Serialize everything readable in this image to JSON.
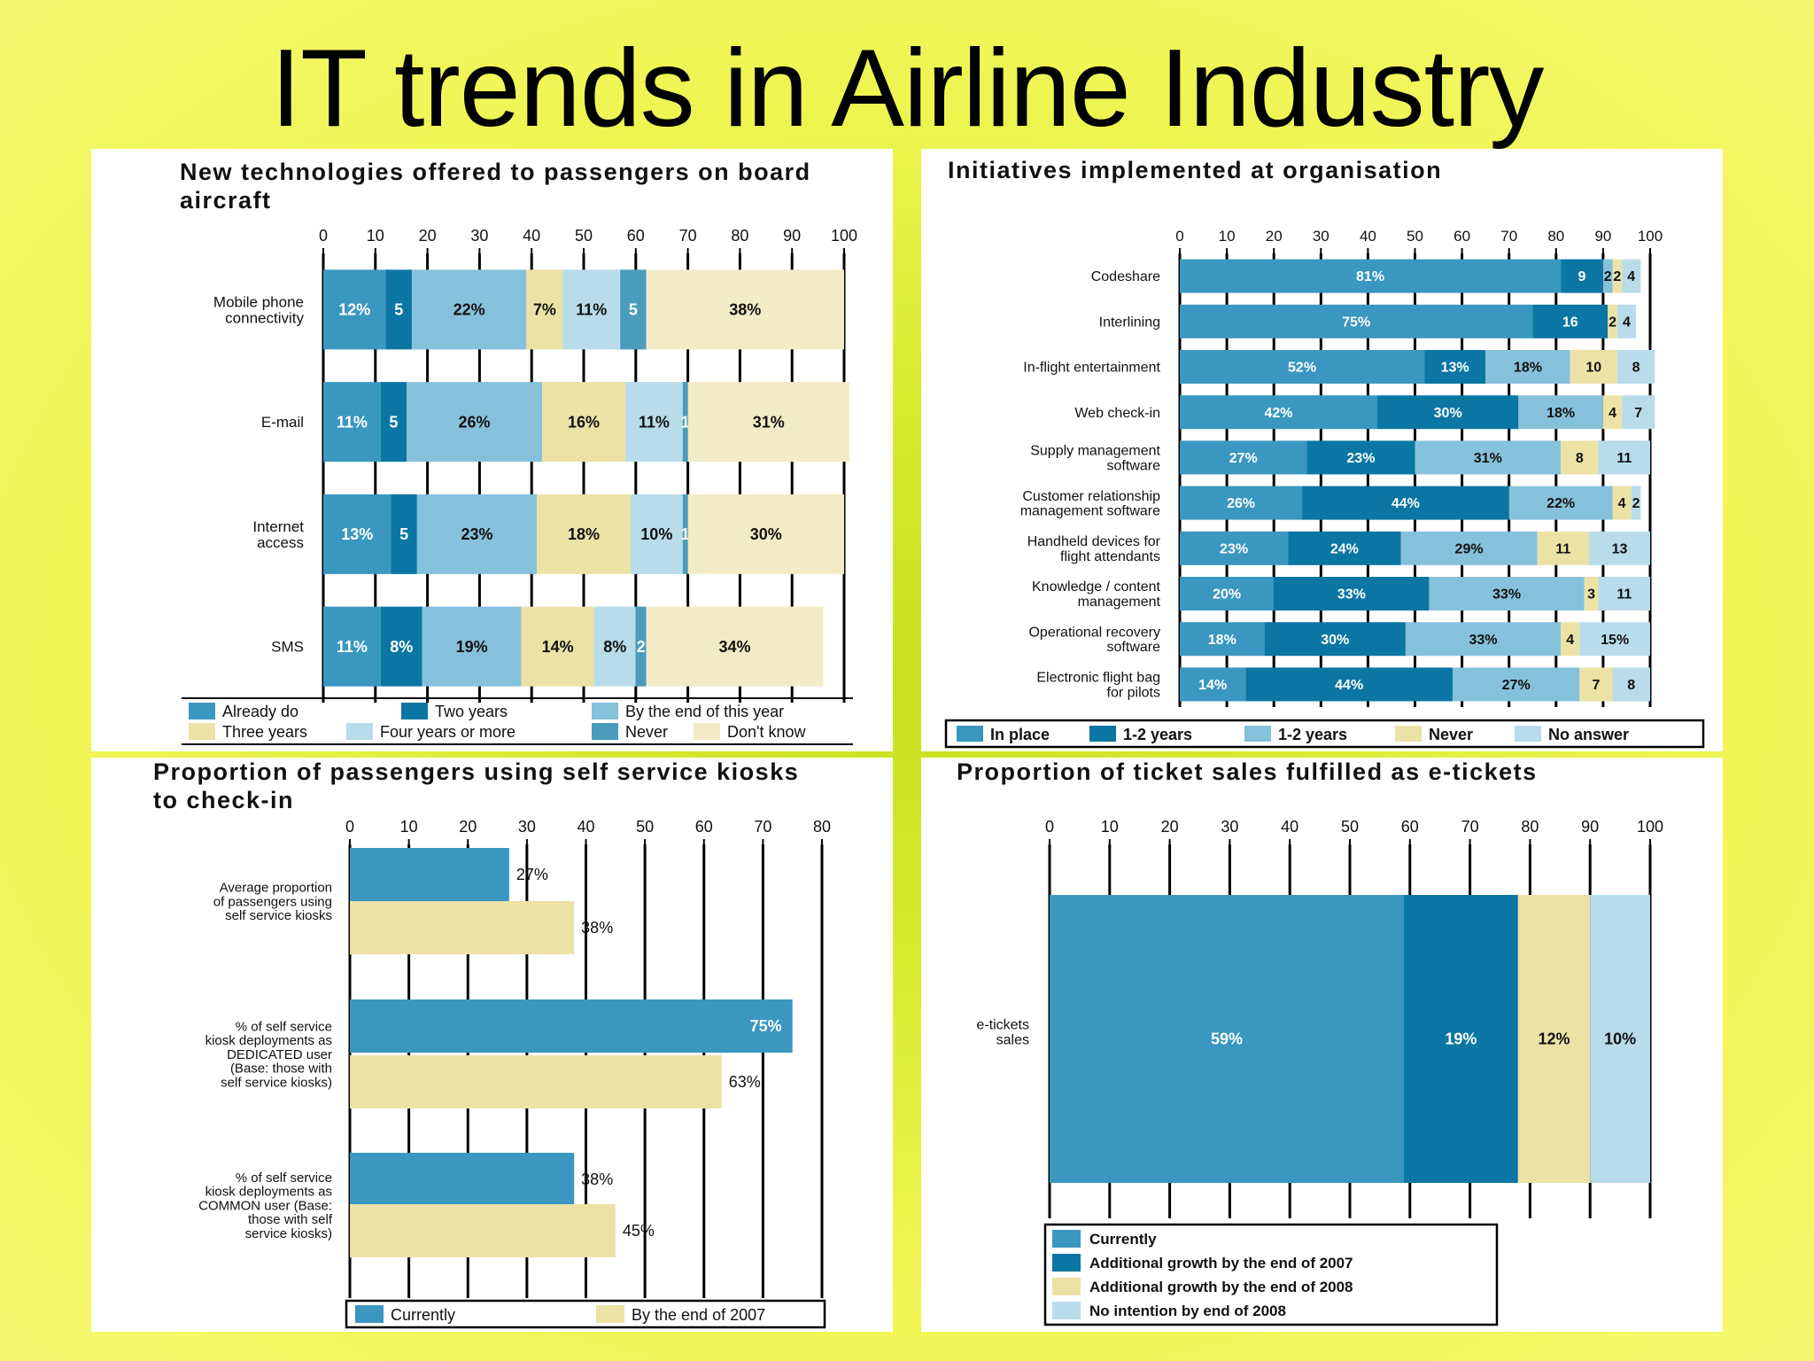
{
  "title": "IT trends in Airline Industry",
  "colors": {
    "c1": "#3a97c0",
    "c2": "#0b76a3",
    "c3": "#86c1dc",
    "c4": "#ece2a6",
    "c5": "#b8dcea",
    "c6": "#4a9cbd",
    "c7": "#f2ebc6",
    "frame": "#000000"
  },
  "chart_data": [
    {
      "type": "bar",
      "orientation": "horizontal-stacked",
      "title": "New technologies offered to passengers on board aircraft",
      "xlim": [
        0,
        100
      ],
      "xticks": [
        "0",
        "10",
        "20",
        "30",
        "40",
        "50",
        "60",
        "70",
        "80",
        "90",
        "100"
      ],
      "categories": [
        "Mobile phone connectivity",
        "E-mail",
        "Internet access",
        "SMS"
      ],
      "series": [
        {
          "name": "Already do",
          "color": "#3a97c0",
          "values": [
            12,
            11,
            13,
            11
          ]
        },
        {
          "name": "Two years",
          "color": "#0b76a3",
          "values": [
            5,
            5,
            5,
            8
          ]
        },
        {
          "name": "By the end of this year",
          "color": "#86c1dc",
          "values": [
            22,
            26,
            23,
            19
          ]
        },
        {
          "name": "Three years",
          "color": "#ece2a6",
          "values": [
            7,
            16,
            18,
            14
          ]
        },
        {
          "name": "Four years or more",
          "color": "#b8dcea",
          "values": [
            11,
            11,
            10,
            8
          ]
        },
        {
          "name": "Never",
          "color": "#4a9cbd",
          "values": [
            5,
            1,
            1,
            2
          ]
        },
        {
          "name": "Don't know",
          "color": "#f2ebc6",
          "values": [
            38,
            31,
            30,
            34
          ]
        }
      ],
      "labels": [
        [
          "12%",
          "5",
          "22%",
          "7%",
          "11%",
          "5",
          "38%"
        ],
        [
          "11%",
          "5",
          "26%",
          "16%",
          "11%",
          "1",
          "31%"
        ],
        [
          "13%",
          "5",
          "23%",
          "18%",
          "10%",
          "1",
          "30%"
        ],
        [
          "11%",
          "8%",
          "19%",
          "14%",
          "8%",
          "2",
          "34%"
        ]
      ],
      "legend": "bottom"
    },
    {
      "type": "bar",
      "orientation": "horizontal-stacked",
      "title": "Initiatives implemented at organisation",
      "xlim": [
        0,
        100
      ],
      "xticks": [
        "0",
        "10",
        "20",
        "30",
        "40",
        "50",
        "60",
        "70",
        "80",
        "90",
        "100"
      ],
      "categories": [
        "Codeshare",
        "Interlining",
        "In-flight entertainment",
        "Web check-in",
        "Supply management software",
        "Customer relationship management software",
        "Handheld devices for flight attendants",
        "Knowledge / content management",
        "Operational recovery software",
        "Electronic flight bag for pilots"
      ],
      "series": [
        {
          "name": "In place",
          "color": "#3a97c0",
          "values": [
            81,
            75,
            52,
            42,
            27,
            26,
            23,
            20,
            18,
            14
          ]
        },
        {
          "name": "1-2 years",
          "color": "#0b76a3",
          "values": [
            9,
            16,
            13,
            30,
            23,
            44,
            24,
            33,
            30,
            44
          ]
        },
        {
          "name": "1-2 years",
          "color": "#86c1dc",
          "values": [
            2,
            0,
            18,
            18,
            31,
            22,
            29,
            33,
            33,
            27
          ]
        },
        {
          "name": "Never",
          "color": "#ece2a6",
          "values": [
            2,
            2,
            10,
            4,
            8,
            4,
            11,
            3,
            4,
            7
          ]
        },
        {
          "name": "No answer",
          "color": "#b8dcea",
          "values": [
            4,
            4,
            8,
            7,
            11,
            2,
            13,
            11,
            15,
            8
          ]
        }
      ],
      "labels": [
        [
          "81%",
          "9",
          "2",
          "2",
          "4"
        ],
        [
          "75%",
          "16",
          "",
          "2",
          "4"
        ],
        [
          "52%",
          "13%",
          "18%",
          "10",
          "8"
        ],
        [
          "42%",
          "30%",
          "18%",
          "4",
          "7"
        ],
        [
          "27%",
          "23%",
          "31%",
          "8",
          "11"
        ],
        [
          "26%",
          "44%",
          "22%",
          "4",
          "2"
        ],
        [
          "23%",
          "24%",
          "29%",
          "11",
          "13"
        ],
        [
          "20%",
          "33%",
          "33%",
          "3",
          "11"
        ],
        [
          "18%",
          "30%",
          "33%",
          "4",
          "15%"
        ],
        [
          "14%",
          "44%",
          "27%",
          "7",
          "8"
        ]
      ],
      "legend": "bottom"
    },
    {
      "type": "bar",
      "orientation": "horizontal-grouped",
      "title": "Proportion of passengers using self service kiosks to check-in",
      "xlim": [
        0,
        80
      ],
      "xticks": [
        "0",
        "10",
        "20",
        "30",
        "40",
        "50",
        "60",
        "70",
        "80"
      ],
      "categories": [
        "Average proportion of passengers using self service kiosks",
        "% of self service kiosk deployments as DEDICATED user (Base: those with self service kiosks)",
        "% of self service kiosk deployments as COMMON user (Base: those with self service kiosks)"
      ],
      "series": [
        {
          "name": "Currently",
          "color": "#3a97c0",
          "values": [
            27,
            75,
            38
          ]
        },
        {
          "name": "By the end of 2007",
          "color": "#ece2a6",
          "values": [
            38,
            63,
            45
          ]
        }
      ],
      "labels": [
        [
          "27%",
          "75%",
          "38%"
        ],
        [
          "38%",
          "63%",
          "45%"
        ]
      ],
      "legend": "bottom"
    },
    {
      "type": "bar",
      "orientation": "horizontal-stacked",
      "title": "Proportion of ticket sales fulfilled as e-tickets",
      "xlim": [
        0,
        100
      ],
      "xticks": [
        "0",
        "10",
        "20",
        "30",
        "40",
        "50",
        "60",
        "70",
        "80",
        "90",
        "100"
      ],
      "categories": [
        "e-tickets sales"
      ],
      "series": [
        {
          "name": "Currently",
          "color": "#3a97c0",
          "values": [
            59
          ]
        },
        {
          "name": "Additional growth by the end of 2007",
          "color": "#0b76a3",
          "values": [
            19
          ]
        },
        {
          "name": "Additional growth by the end of 2008",
          "color": "#ece2a6",
          "values": [
            12
          ]
        },
        {
          "name": "No intention by end of 2008",
          "color": "#b8dcea",
          "values": [
            10
          ]
        }
      ],
      "labels": [
        [
          "59%",
          "19%",
          "12%",
          "10%"
        ]
      ],
      "legend": "bottom"
    }
  ]
}
